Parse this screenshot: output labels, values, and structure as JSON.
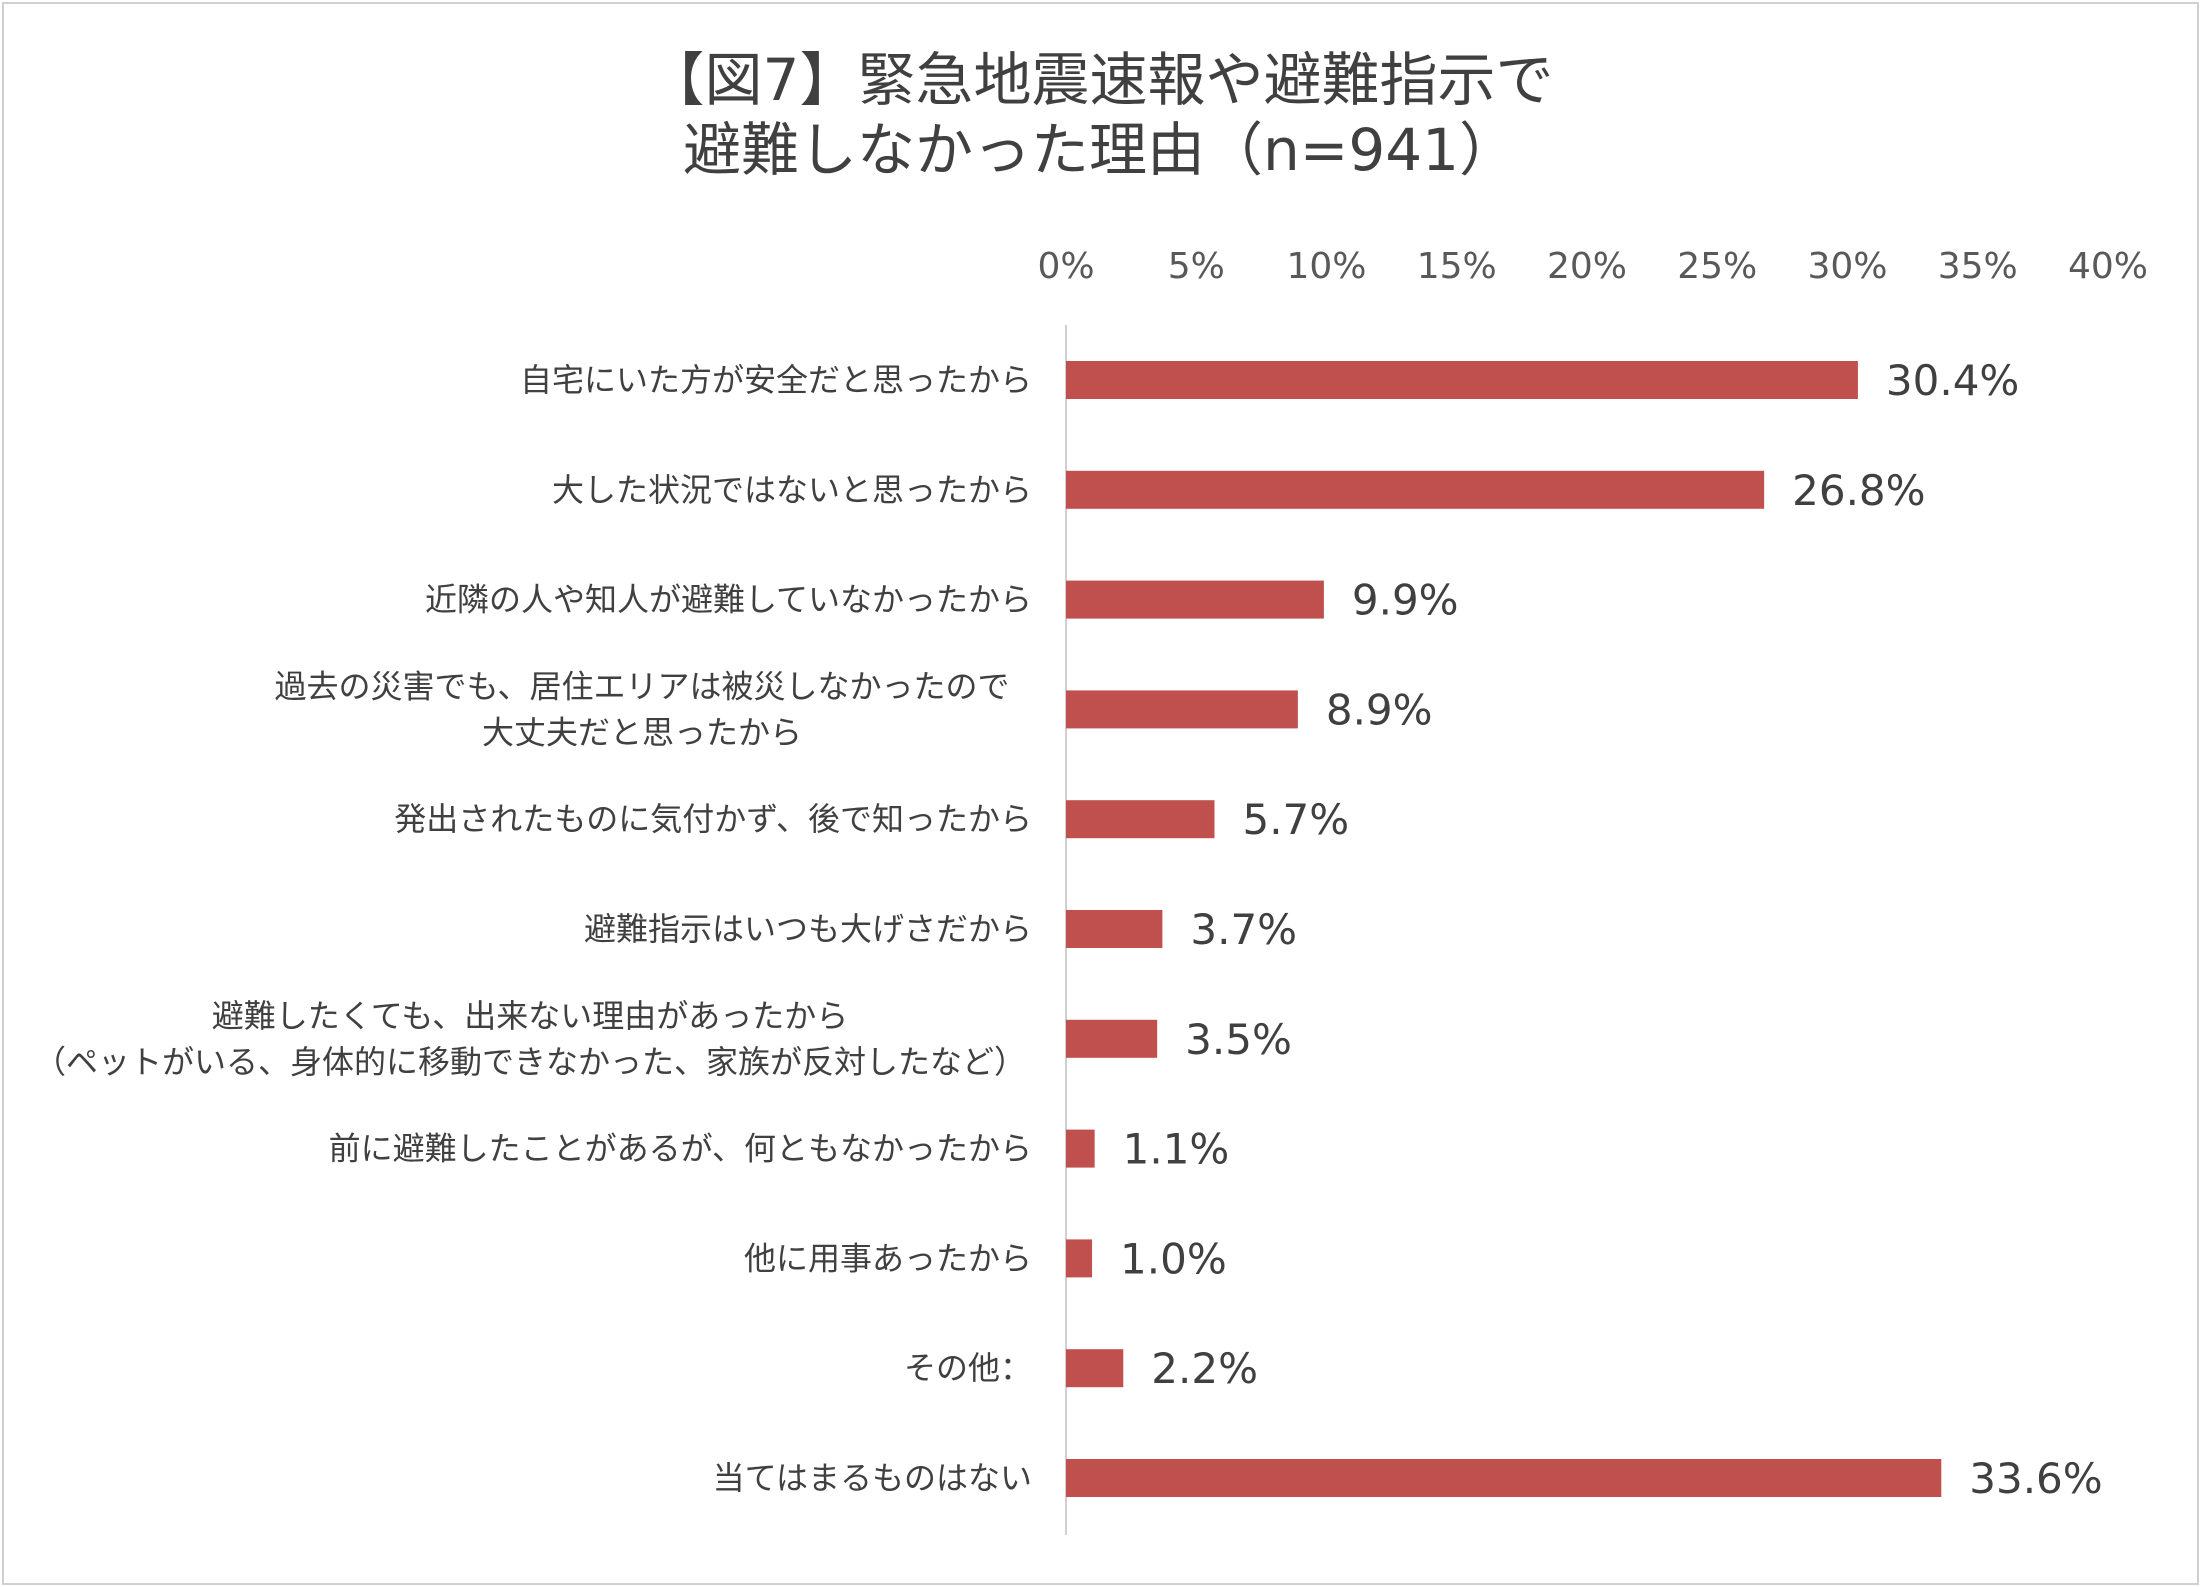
{
  "chart_data": {
    "type": "bar",
    "orientation": "horizontal",
    "title": [
      "【図7】緊急地震速報や避難指示で",
      "避難しなかった理由（n=941）"
    ],
    "xlim": [
      0,
      40
    ],
    "x_ticks": [
      "0%",
      "5%",
      "10%",
      "15%",
      "20%",
      "25%",
      "30%",
      "35%",
      "40%"
    ],
    "grid": false,
    "bar_color": "#c0504d",
    "categories": [
      [
        "自宅にいた方が安全だと思ったから"
      ],
      [
        "大した状況ではないと思ったから"
      ],
      [
        "近隣の人や知人が避難していなかったから"
      ],
      [
        "過去の災害でも、居住エリアは被災しなかったので",
        "大丈夫だと思ったから"
      ],
      [
        "発出されたものに気付かず、後で知ったから"
      ],
      [
        "避難指示はいつも大げさだから"
      ],
      [
        "避難したくても、出来ない理由があったから",
        "（ペットがいる、身体的に移動できなかった、家族が反対したなど）"
      ],
      [
        "前に避難したことがあるが、何ともなかったから"
      ],
      [
        "他に用事あったから"
      ],
      [
        "その他："
      ],
      [
        "当てはまるものはない"
      ]
    ],
    "values": [
      30.4,
      26.8,
      9.9,
      8.9,
      5.7,
      3.7,
      3.5,
      1.1,
      1.0,
      2.2,
      33.6
    ],
    "value_labels": [
      "30.4%",
      "26.8%",
      "9.9%",
      "8.9%",
      "5.7%",
      "3.7%",
      "3.5%",
      "1.1%",
      "1.0%",
      "2.2%",
      "33.6%"
    ]
  }
}
